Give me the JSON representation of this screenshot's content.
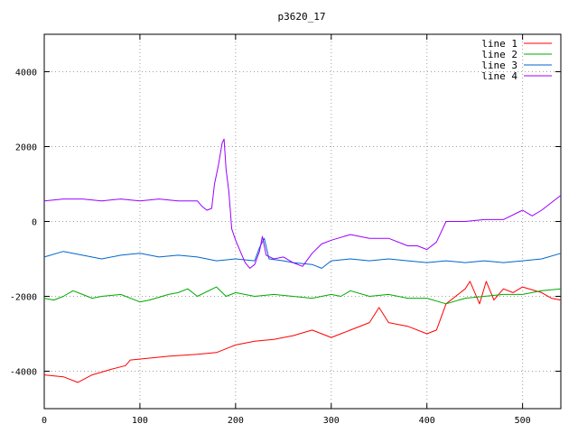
{
  "chart_data": {
    "type": "line",
    "title": "p3620_17",
    "xlabel": "",
    "ylabel": "",
    "xlim": [
      0,
      540
    ],
    "ylim": [
      -5000,
      5000
    ],
    "xticks": [
      0,
      100,
      200,
      300,
      400,
      500
    ],
    "yticks": [
      -4000,
      -2000,
      0,
      2000,
      4000
    ],
    "grid": true,
    "legend_position": "top-right",
    "series": [
      {
        "name": "line 1",
        "color": "#ff0000",
        "points": [
          [
            0,
            -4100
          ],
          [
            20,
            -4150
          ],
          [
            35,
            -4300
          ],
          [
            50,
            -4100
          ],
          [
            70,
            -3950
          ],
          [
            85,
            -3850
          ],
          [
            90,
            -3700
          ],
          [
            110,
            -3650
          ],
          [
            130,
            -3600
          ],
          [
            160,
            -3550
          ],
          [
            180,
            -3500
          ],
          [
            200,
            -3300
          ],
          [
            220,
            -3200
          ],
          [
            240,
            -3150
          ],
          [
            260,
            -3050
          ],
          [
            280,
            -2900
          ],
          [
            300,
            -3100
          ],
          [
            320,
            -2900
          ],
          [
            340,
            -2700
          ],
          [
            350,
            -2300
          ],
          [
            360,
            -2700
          ],
          [
            380,
            -2800
          ],
          [
            400,
            -3000
          ],
          [
            410,
            -2900
          ],
          [
            420,
            -2200
          ],
          [
            440,
            -1800
          ],
          [
            445,
            -1600
          ],
          [
            455,
            -2200
          ],
          [
            462,
            -1600
          ],
          [
            470,
            -2100
          ],
          [
            480,
            -1800
          ],
          [
            490,
            -1900
          ],
          [
            500,
            -1750
          ],
          [
            520,
            -1900
          ],
          [
            530,
            -2050
          ],
          [
            540,
            -2100
          ]
        ]
      },
      {
        "name": "line 2",
        "color": "#00aa00",
        "points": [
          [
            0,
            -2050
          ],
          [
            10,
            -2100
          ],
          [
            20,
            -2000
          ],
          [
            30,
            -1850
          ],
          [
            40,
            -1950
          ],
          [
            50,
            -2050
          ],
          [
            60,
            -2000
          ],
          [
            80,
            -1950
          ],
          [
            100,
            -2150
          ],
          [
            110,
            -2100
          ],
          [
            130,
            -1950
          ],
          [
            140,
            -1900
          ],
          [
            150,
            -1800
          ],
          [
            160,
            -2000
          ],
          [
            180,
            -1750
          ],
          [
            190,
            -2000
          ],
          [
            200,
            -1900
          ],
          [
            220,
            -2000
          ],
          [
            240,
            -1950
          ],
          [
            260,
            -2000
          ],
          [
            280,
            -2050
          ],
          [
            300,
            -1950
          ],
          [
            310,
            -2000
          ],
          [
            320,
            -1850
          ],
          [
            340,
            -2000
          ],
          [
            360,
            -1950
          ],
          [
            380,
            -2050
          ],
          [
            400,
            -2050
          ],
          [
            420,
            -2200
          ],
          [
            440,
            -2050
          ],
          [
            460,
            -2000
          ],
          [
            480,
            -1950
          ],
          [
            500,
            -1950
          ],
          [
            520,
            -1850
          ],
          [
            540,
            -1800
          ]
        ]
      },
      {
        "name": "line 3",
        "color": "#0066cc",
        "points": [
          [
            0,
            -950
          ],
          [
            20,
            -800
          ],
          [
            40,
            -900
          ],
          [
            60,
            -1000
          ],
          [
            80,
            -900
          ],
          [
            100,
            -850
          ],
          [
            120,
            -950
          ],
          [
            140,
            -900
          ],
          [
            160,
            -950
          ],
          [
            180,
            -1050
          ],
          [
            200,
            -1000
          ],
          [
            220,
            -1050
          ],
          [
            225,
            -700
          ],
          [
            230,
            -450
          ],
          [
            235,
            -1000
          ],
          [
            250,
            -1050
          ],
          [
            260,
            -1100
          ],
          [
            280,
            -1150
          ],
          [
            290,
            -1250
          ],
          [
            300,
            -1050
          ],
          [
            320,
            -1000
          ],
          [
            340,
            -1050
          ],
          [
            360,
            -1000
          ],
          [
            380,
            -1050
          ],
          [
            400,
            -1100
          ],
          [
            420,
            -1050
          ],
          [
            440,
            -1100
          ],
          [
            460,
            -1050
          ],
          [
            480,
            -1100
          ],
          [
            500,
            -1050
          ],
          [
            520,
            -1000
          ],
          [
            540,
            -850
          ]
        ]
      },
      {
        "name": "line 4",
        "color": "#9900ff",
        "points": [
          [
            0,
            550
          ],
          [
            20,
            600
          ],
          [
            40,
            600
          ],
          [
            60,
            550
          ],
          [
            80,
            600
          ],
          [
            100,
            550
          ],
          [
            120,
            600
          ],
          [
            140,
            550
          ],
          [
            160,
            550
          ],
          [
            165,
            400
          ],
          [
            170,
            300
          ],
          [
            175,
            350
          ],
          [
            178,
            1000
          ],
          [
            182,
            1500
          ],
          [
            186,
            2100
          ],
          [
            188,
            2200
          ],
          [
            190,
            1400
          ],
          [
            193,
            800
          ],
          [
            196,
            -200
          ],
          [
            200,
            -500
          ],
          [
            205,
            -800
          ],
          [
            210,
            -1100
          ],
          [
            215,
            -1250
          ],
          [
            220,
            -1150
          ],
          [
            225,
            -800
          ],
          [
            228,
            -400
          ],
          [
            232,
            -900
          ],
          [
            240,
            -1000
          ],
          [
            250,
            -950
          ],
          [
            260,
            -1100
          ],
          [
            270,
            -1200
          ],
          [
            280,
            -850
          ],
          [
            290,
            -600
          ],
          [
            300,
            -500
          ],
          [
            320,
            -350
          ],
          [
            340,
            -450
          ],
          [
            360,
            -450
          ],
          [
            380,
            -650
          ],
          [
            390,
            -650
          ],
          [
            400,
            -750
          ],
          [
            410,
            -550
          ],
          [
            420,
            0
          ],
          [
            440,
            0
          ],
          [
            460,
            50
          ],
          [
            480,
            50
          ],
          [
            500,
            300
          ],
          [
            510,
            150
          ],
          [
            520,
            300
          ],
          [
            540,
            700
          ]
        ]
      }
    ]
  }
}
